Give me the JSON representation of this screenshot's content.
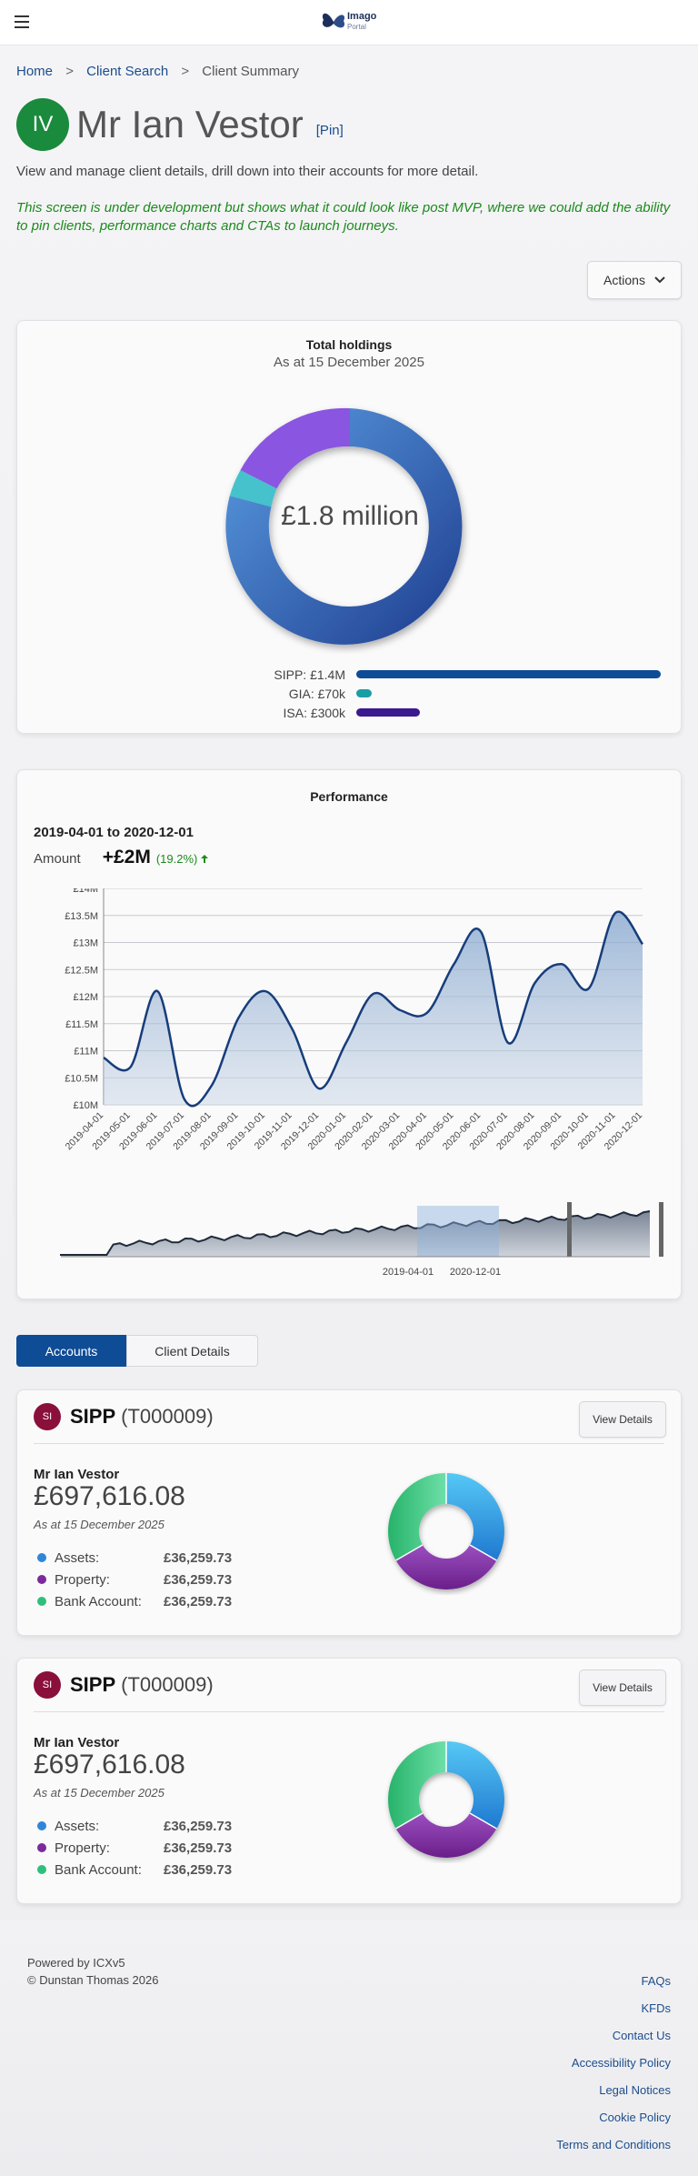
{
  "app": {
    "brand": "Imago",
    "brand_sub": "Portal"
  },
  "breadcrumb": {
    "home": "Home",
    "search": "Client Search",
    "current": "Client Summary",
    "sep": ">"
  },
  "client": {
    "initials": "IV",
    "name": "Mr Ian Vestor",
    "pin_label": "[Pin]",
    "intro": "View and manage client details, drill down into their accounts for more detail.",
    "dev_note": "This screen is under development but shows what it could look like post MVP, where we could add the ability to pin clients, performance charts and CTAs to launch journeys."
  },
  "actions_label": "Actions",
  "holdings": {
    "title": "Total holdings",
    "subtitle": "As at 15 December 2025",
    "center_label": "£1.8 million",
    "items": [
      {
        "label": "SIPP: £1.4M",
        "fraction": 1.0,
        "color": "#0f4c96"
      },
      {
        "label": "GIA: £70k",
        "fraction": 0.05,
        "color": "#1a9ea6"
      },
      {
        "label": "ISA: £300k",
        "fraction": 0.21,
        "color": "#3a1a8e"
      }
    ]
  },
  "chart_data": {
    "type": "area",
    "title": "Performance",
    "range_label": "2019-04-01 to 2020-12-01",
    "amount_label": "Amount",
    "amount_value": "+£2M",
    "amount_pct": "(19.2%)",
    "ylim": [
      10,
      14
    ],
    "yticks": [
      "£10M",
      "£10.5M",
      "£11M",
      "£11.5M",
      "£12M",
      "£12.5M",
      "£13M",
      "£13.5M",
      "£14M"
    ],
    "x": [
      "2019-04-01",
      "2019-05-01",
      "2019-06-01",
      "2019-07-01",
      "2019-08-01",
      "2019-09-01",
      "2019-10-01",
      "2019-11-01",
      "2019-12-01",
      "2020-01-01",
      "2020-02-01",
      "2020-03-01",
      "2020-04-01",
      "2020-05-01",
      "2020-06-01",
      "2020-07-01",
      "2020-08-01",
      "2020-09-01",
      "2020-10-01",
      "2020-11-01",
      "2020-12-01"
    ],
    "values": [
      10.87,
      10.7,
      12.1,
      10.1,
      10.35,
      11.6,
      12.1,
      11.4,
      10.3,
      11.15,
      12.05,
      11.75,
      11.7,
      12.6,
      13.2,
      11.15,
      12.25,
      12.6,
      12.15,
      13.55,
      12.97
    ],
    "navigator_labels": [
      "2019-04-01",
      "2020-12-01"
    ],
    "grid": true
  },
  "tabs": {
    "accounts": "Accounts",
    "details": "Client Details"
  },
  "accounts": [
    {
      "icon": "SI",
      "type": "SIPP",
      "code": "(T000009)",
      "view": "View Details",
      "owner": "Mr Ian Vestor",
      "value": "£697,616.08",
      "as_at": "As at 15 December 2025",
      "breakdown": [
        {
          "label": "Assets:",
          "value": "£36,259.73",
          "color": "#2f86d8"
        },
        {
          "label": "Property:",
          "value": "£36,259.73",
          "color": "#7a2a9a"
        },
        {
          "label": "Bank Account:",
          "value": "£36,259.73",
          "color": "#2ec07a"
        }
      ]
    },
    {
      "icon": "SI",
      "type": "SIPP",
      "code": "(T000009)",
      "view": "View Details",
      "owner": "Mr Ian Vestor",
      "value": "£697,616.08",
      "as_at": "As at 15 December 2025",
      "breakdown": [
        {
          "label": "Assets:",
          "value": "£36,259.73",
          "color": "#2f86d8"
        },
        {
          "label": "Property:",
          "value": "£36,259.73",
          "color": "#7a2a9a"
        },
        {
          "label": "Bank Account:",
          "value": "£36,259.73",
          "color": "#2ec07a"
        }
      ]
    }
  ],
  "footer": {
    "powered": "Powered by ICXv5",
    "copyright": "© Dunstan Thomas 2026",
    "links": [
      "FAQs",
      "KFDs",
      "Contact Us",
      "Accessibility Policy",
      "Legal Notices",
      "Cookie Policy",
      "Terms and Conditions"
    ]
  }
}
